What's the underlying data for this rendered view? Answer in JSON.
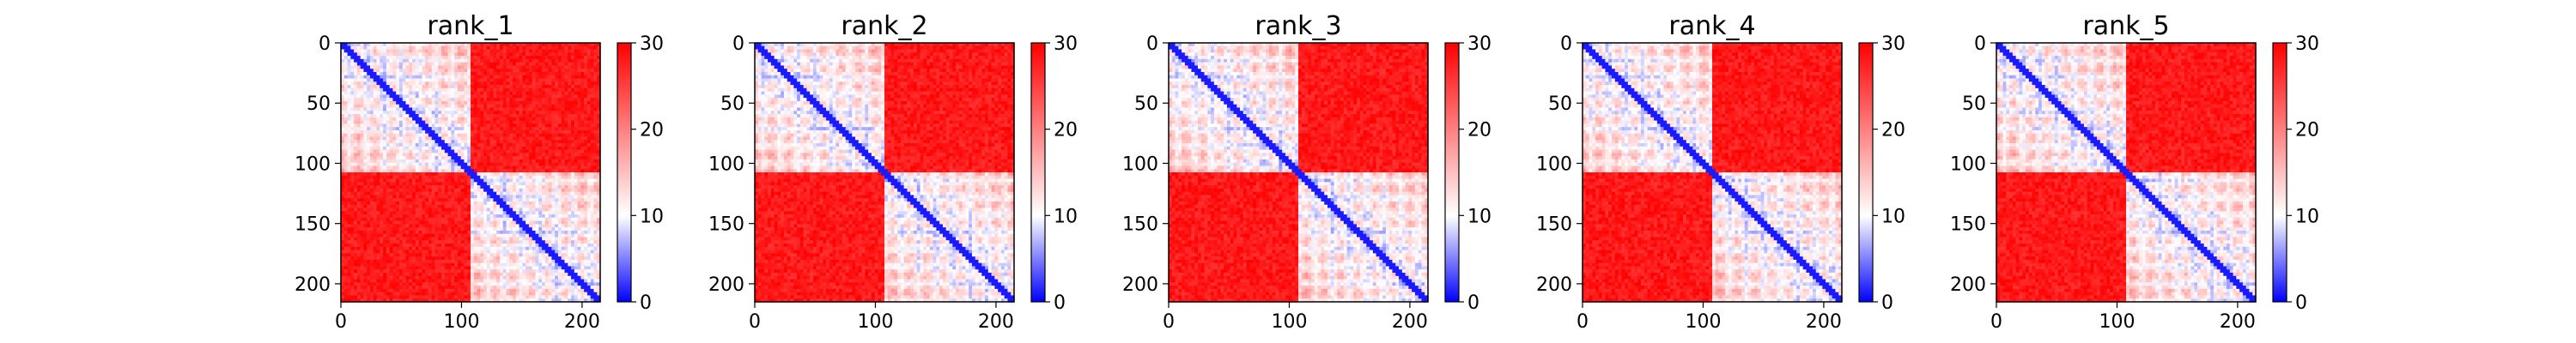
{
  "chart_data": [
    {
      "type": "heatmap",
      "title": "rank_1",
      "xlim": [
        0,
        215
      ],
      "ylim": [
        215,
        0
      ],
      "x_ticks": [
        0,
        100,
        200
      ],
      "y_ticks": [
        0,
        50,
        100,
        150,
        200
      ],
      "domains": [
        [
          0,
          108
        ],
        [
          108,
          215
        ]
      ],
      "inter_domain_error": 28,
      "colorbar": {
        "range": [
          0,
          30
        ],
        "ticks": [
          0,
          10,
          20,
          30
        ],
        "colors": [
          "#0000ff",
          "#ffffff",
          "#ff0000"
        ]
      }
    },
    {
      "type": "heatmap",
      "title": "rank_2",
      "xlim": [
        0,
        215
      ],
      "ylim": [
        215,
        0
      ],
      "x_ticks": [
        0,
        100,
        200
      ],
      "y_ticks": [
        0,
        50,
        100,
        150,
        200
      ],
      "domains": [
        [
          0,
          108
        ],
        [
          108,
          215
        ]
      ],
      "inter_domain_error": 28,
      "colorbar": {
        "range": [
          0,
          30
        ],
        "ticks": [
          0,
          10,
          20,
          30
        ],
        "colors": [
          "#0000ff",
          "#ffffff",
          "#ff0000"
        ]
      }
    },
    {
      "type": "heatmap",
      "title": "rank_3",
      "xlim": [
        0,
        215
      ],
      "ylim": [
        215,
        0
      ],
      "x_ticks": [
        0,
        100,
        200
      ],
      "y_ticks": [
        0,
        50,
        100,
        150,
        200
      ],
      "domains": [
        [
          0,
          108
        ],
        [
          108,
          215
        ]
      ],
      "inter_domain_error": 28,
      "colorbar": {
        "range": [
          0,
          30
        ],
        "ticks": [
          0,
          10,
          20,
          30
        ],
        "colors": [
          "#0000ff",
          "#ffffff",
          "#ff0000"
        ]
      }
    },
    {
      "type": "heatmap",
      "title": "rank_4",
      "xlim": [
        0,
        215
      ],
      "ylim": [
        215,
        0
      ],
      "x_ticks": [
        0,
        100,
        200
      ],
      "y_ticks": [
        0,
        50,
        100,
        150,
        200
      ],
      "domains": [
        [
          0,
          108
        ],
        [
          108,
          215
        ]
      ],
      "inter_domain_error": 28,
      "colorbar": {
        "range": [
          0,
          30
        ],
        "ticks": [
          0,
          10,
          20,
          30
        ],
        "colors": [
          "#0000ff",
          "#ffffff",
          "#ff0000"
        ]
      }
    },
    {
      "type": "heatmap",
      "title": "rank_5",
      "xlim": [
        0,
        215
      ],
      "ylim": [
        215,
        0
      ],
      "x_ticks": [
        0,
        100,
        200
      ],
      "y_ticks": [
        0,
        50,
        100,
        150,
        200
      ],
      "domains": [
        [
          0,
          108
        ],
        [
          108,
          215
        ]
      ],
      "inter_domain_error": 28,
      "colorbar": {
        "range": [
          0,
          30
        ],
        "ticks": [
          0,
          10,
          20,
          30
        ],
        "colors": [
          "#0000ff",
          "#ffffff",
          "#ff0000"
        ]
      }
    }
  ]
}
